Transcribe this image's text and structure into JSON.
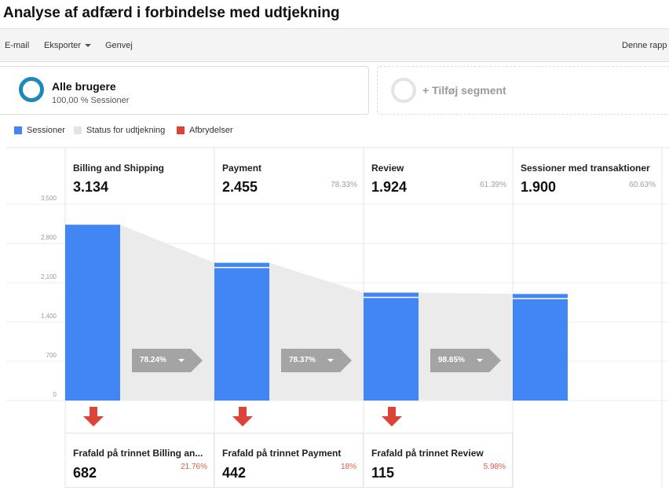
{
  "header": {
    "title": "Analyse af adfærd i forbindelse med udtjekning"
  },
  "toolbar": {
    "email": "E-mail",
    "export": "Eksporter",
    "shortcut": "Genvej",
    "this_report": "Denne rapp"
  },
  "segment": {
    "name": "Alle brugere",
    "sub": "100,00 % Sessioner",
    "add_label": "+ Tilføj segment"
  },
  "legend": [
    {
      "label": "Sessioner",
      "color": "#4285f4"
    },
    {
      "label": "Status for udtjekning",
      "color": "#e4e4e4"
    },
    {
      "label": "Afbrydelser",
      "color": "#db4437"
    }
  ],
  "steps": [
    {
      "name": "Billing and Shipping",
      "value": "3.134",
      "pct": ""
    },
    {
      "name": "Payment",
      "value": "2.455",
      "pct": "78.33%"
    },
    {
      "name": "Review",
      "value": "1.924",
      "pct": "61.39%"
    },
    {
      "name": "Sessioner med transaktioner",
      "value": "1.900",
      "pct": "60.63%"
    }
  ],
  "conversions": [
    {
      "label": "78.24%"
    },
    {
      "label": "78.37%"
    },
    {
      "label": "98.65%"
    }
  ],
  "dropoffs": [
    {
      "name": "Frafald på trinnet Billing an...",
      "value": "682",
      "pct": "21.76%"
    },
    {
      "name": "Frafald på trinnet Payment",
      "value": "442",
      "pct": "18%"
    },
    {
      "name": "Frafald på trinnet Review",
      "value": "115",
      "pct": "5.98%"
    }
  ],
  "chart_data": {
    "type": "bar",
    "categories": [
      "Billing and Shipping",
      "Payment",
      "Review",
      "Sessioner med transaktioner"
    ],
    "y_ticks": [
      "0",
      "700",
      "1,400",
      "2,100",
      "2,800",
      "3,500"
    ],
    "ylim": [
      0,
      3500
    ],
    "series": [
      {
        "name": "Sessioner",
        "values": [
          3134,
          2455,
          1924,
          1900
        ]
      }
    ],
    "grid": true
  }
}
